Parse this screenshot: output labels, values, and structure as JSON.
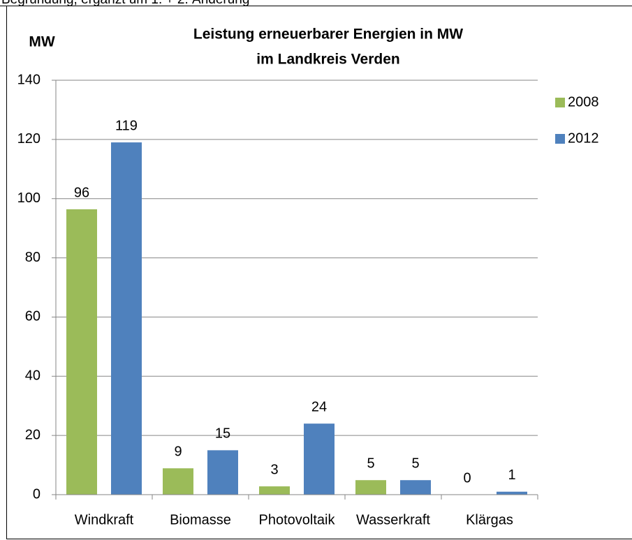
{
  "header": "Begründung, ergänzt um 1. + 2. Änderung",
  "chart_data": {
    "type": "bar",
    "title": [
      "Leistung erneuerbarer Energien in MW",
      "im Landkreis Verden"
    ],
    "y_label": "MW",
    "categories": [
      "Windkraft",
      "Biomasse",
      "Photovoltaik",
      "Wasserkraft",
      "Klärgas"
    ],
    "series": [
      {
        "name": "2008",
        "color": "#9bbb59",
        "values": [
          96.4,
          8.9,
          2.8,
          4.9,
          0
        ],
        "value_labels": [
          "96",
          "9",
          "3",
          "5",
          "0"
        ]
      },
      {
        "name": "2012",
        "color": "#4f81bd",
        "values": [
          119,
          15,
          24,
          4.9,
          1
        ],
        "value_labels": [
          "119",
          "15",
          "24",
          "5",
          "1"
        ]
      }
    ],
    "ylim": [
      0,
      140
    ],
    "yticks": [
      0,
      20,
      40,
      60,
      80,
      100,
      120,
      140
    ],
    "grid": true,
    "legend": "right"
  }
}
